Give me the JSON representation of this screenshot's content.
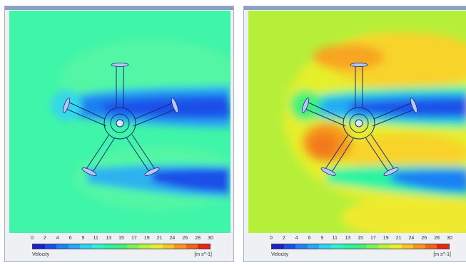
{
  "panels": [
    {
      "legend": {
        "ticks": [
          "0",
          "2",
          "4",
          "6",
          "9",
          "11",
          "13",
          "15",
          "17",
          "19",
          "21",
          "24",
          "26",
          "28",
          "30"
        ],
        "label": "Velocity",
        "unit": "[m s^-1]"
      }
    },
    {
      "legend": {
        "ticks": [
          "0",
          "2",
          "4",
          "6",
          "9",
          "11",
          "13",
          "15",
          "17",
          "19",
          "21",
          "24",
          "26",
          "28",
          "30"
        ],
        "label": "Velocity",
        "unit": "[m s^-1]"
      }
    }
  ],
  "colormap": [
    "#1a22c9",
    "#1c4fe8",
    "#1f7ff5",
    "#25a9f7",
    "#2fd3f0",
    "#2ff0d0",
    "#2cf3a2",
    "#3ff07a",
    "#7af25a",
    "#b7f23e",
    "#e8ee2e",
    "#f9c526",
    "#f9951e",
    "#f46418",
    "#e82414"
  ]
}
